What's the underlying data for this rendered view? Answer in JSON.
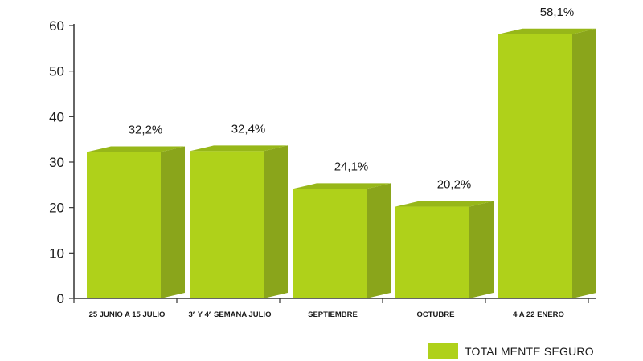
{
  "chart_data": {
    "type": "bar",
    "categories": [
      "25 JUNIO A 15 JULIO",
      "3ª Y 4ª SEMANA JULIO",
      "SEPTIEMBRE",
      "OCTUBRE",
      "4 A 22 ENERO"
    ],
    "series": [
      {
        "name": "TOTALMENTE SEGURO",
        "values": [
          32.2,
          32.4,
          24.1,
          20.2,
          58.1
        ]
      }
    ],
    "data_labels": [
      "32,2%",
      "32,4%",
      "24,1%",
      "20,2%",
      "58,1%"
    ],
    "yticks": [
      "0",
      "10",
      "20",
      "30",
      "40",
      "50",
      "60"
    ],
    "ylim": [
      0,
      60
    ],
    "grid": false,
    "legend_position": "bottom-right",
    "colors": {
      "front": "#afd11a",
      "side": "#8aa51b",
      "top": "#97b719"
    }
  }
}
